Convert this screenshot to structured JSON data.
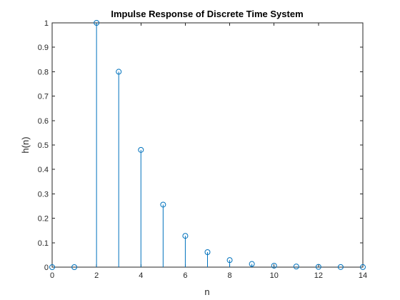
{
  "chart_data": {
    "type": "stem",
    "title": "Impulse Response of Discrete Time System",
    "xlabel": "n",
    "ylabel": "h(n)",
    "xlim": [
      0,
      14
    ],
    "ylim": [
      0,
      1
    ],
    "xticks": [
      0,
      2,
      4,
      6,
      8,
      10,
      12,
      14
    ],
    "yticks": [
      0,
      0.1,
      0.2,
      0.3,
      0.4,
      0.5,
      0.6,
      0.7,
      0.8,
      0.9,
      1
    ],
    "x": [
      0,
      1,
      2,
      3,
      4,
      5,
      6,
      7,
      8,
      9,
      10,
      11,
      12,
      13,
      14
    ],
    "values": [
      0,
      0,
      1,
      0.8,
      0.48,
      0.256,
      0.128,
      0.0614,
      0.0287,
      0.0131,
      0.0059,
      0.0026,
      0.0011,
      0.0005,
      0.0002
    ],
    "marker": "circle",
    "grid": false,
    "color": "#0072BD"
  }
}
